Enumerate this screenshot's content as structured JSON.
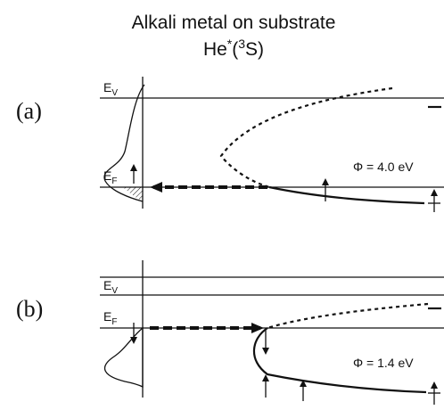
{
  "header": {
    "title": "Alkali metal on substrate",
    "subtitle": {
      "base": "He",
      "star": "*",
      "open": "(",
      "sup": "3",
      "rest": "S)"
    }
  },
  "panels": [
    {
      "label": "(a)",
      "vacuum": {
        "letter": "E",
        "sub": "V"
      },
      "fermi": {
        "letter": "E",
        "sub": "F"
      },
      "work_function": "Φ = 4.0 eV"
    },
    {
      "label": "(b)",
      "vacuum": {
        "letter": "E",
        "sub": "V"
      },
      "fermi": {
        "letter": "E",
        "sub": "F"
      },
      "work_function": "Φ = 1.4 eV"
    }
  ]
}
